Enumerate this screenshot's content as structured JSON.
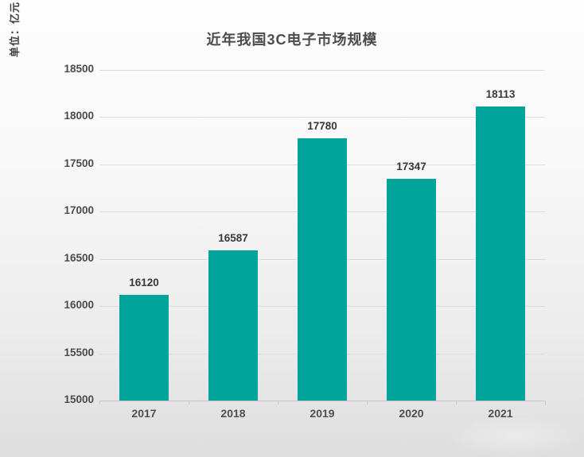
{
  "page": {
    "background_top": "#fefefe",
    "background_bottom": "#dedede"
  },
  "chart_data": {
    "type": "bar",
    "title": "近年我国3C电子市场规模",
    "unit_label": "单位：亿元",
    "categories": [
      "2017",
      "2018",
      "2019",
      "2020",
      "2021"
    ],
    "values": [
      16120,
      16587,
      17780,
      17347,
      18113
    ],
    "value_labels_shown": true,
    "yticks": [
      15000,
      15500,
      16000,
      16500,
      17000,
      17500,
      18000,
      18500
    ],
    "ylim": [
      15000,
      18500
    ],
    "xlabel": "",
    "ylabel": "单位：亿元",
    "grid": "horizontal",
    "legend": "none",
    "bar_color": "#00a49b",
    "title_color": "#4c4c4c",
    "label_color": "#383838",
    "gridline_color": "#dcdcdc"
  }
}
